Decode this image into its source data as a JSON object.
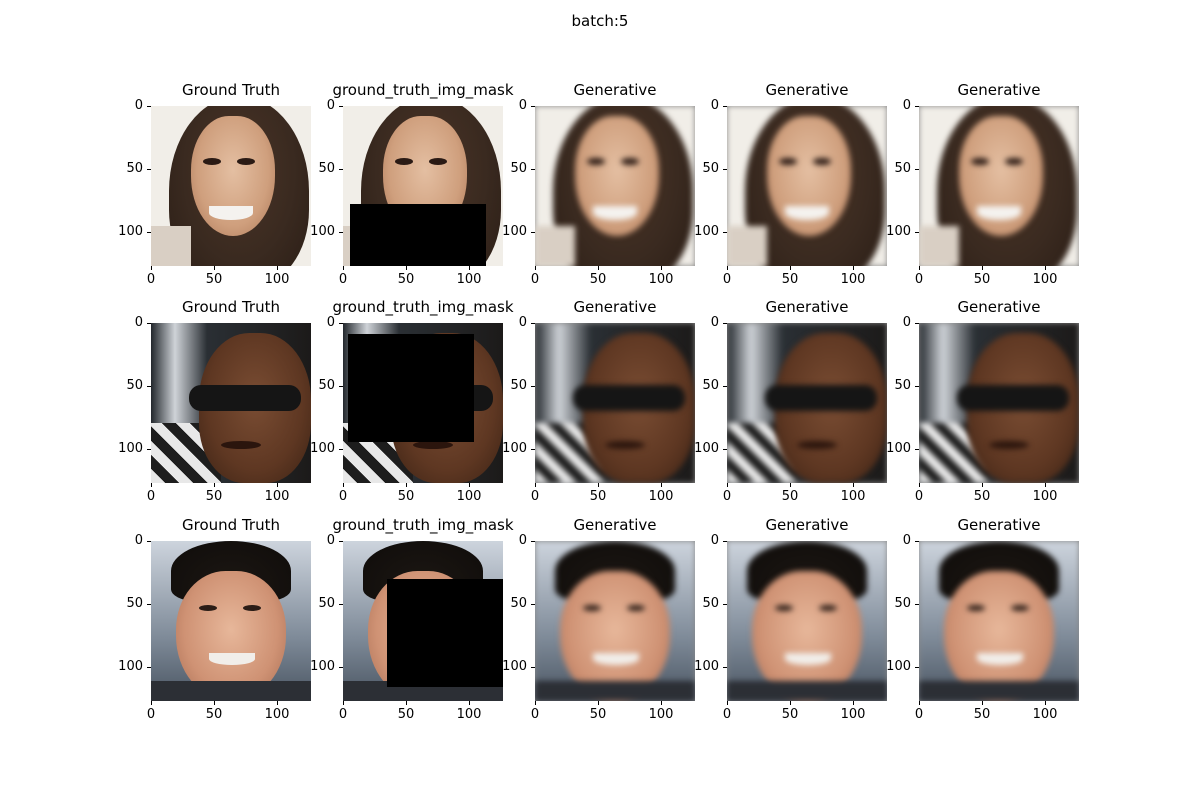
{
  "figure": {
    "suptitle": "batch:5",
    "x_ticks": [
      "0",
      "50",
      "100"
    ],
    "y_ticks": [
      "0",
      "50",
      "100"
    ]
  },
  "rows": [
    {
      "panels": [
        {
          "title": "Ground Truth",
          "kind": "face-woman",
          "variant": "sharp"
        },
        {
          "title": "ground_truth_img_mask",
          "kind": "face-woman",
          "variant": "masked"
        },
        {
          "title": "Generative",
          "kind": "face-woman",
          "variant": "blurred"
        },
        {
          "title": "Generative",
          "kind": "face-woman",
          "variant": "blurred"
        },
        {
          "title": "Generative",
          "kind": "face-woman",
          "variant": "blurred"
        }
      ]
    },
    {
      "panels": [
        {
          "title": "Ground Truth",
          "kind": "face-man-sunglasses",
          "variant": "sharp"
        },
        {
          "title": "ground_truth_img_mask",
          "kind": "face-man-sunglasses",
          "variant": "masked"
        },
        {
          "title": "Generative",
          "kind": "face-man-sunglasses",
          "variant": "blurred"
        },
        {
          "title": "Generative",
          "kind": "face-man-sunglasses",
          "variant": "blurred"
        },
        {
          "title": "Generative",
          "kind": "face-man-sunglasses",
          "variant": "blurred"
        }
      ]
    },
    {
      "panels": [
        {
          "title": "Ground Truth",
          "kind": "face-man-smiling",
          "variant": "sharp"
        },
        {
          "title": "ground_truth_img_mask",
          "kind": "face-man-smiling",
          "variant": "masked"
        },
        {
          "title": "Generative",
          "kind": "face-man-smiling",
          "variant": "blurred"
        },
        {
          "title": "Generative",
          "kind": "face-man-smiling",
          "variant": "blurred"
        },
        {
          "title": "Generative",
          "kind": "face-man-smiling",
          "variant": "blurred"
        }
      ]
    }
  ]
}
